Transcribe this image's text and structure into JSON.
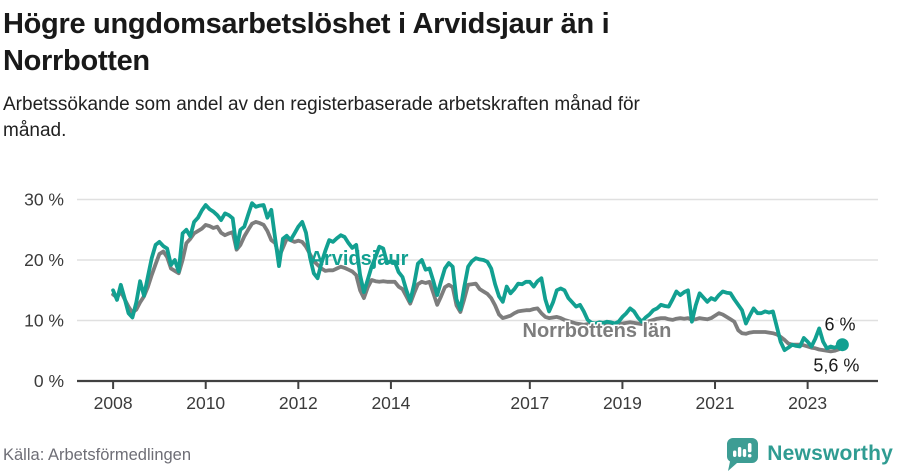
{
  "header": {
    "title_line1": "Högre ungdomsarbetslöshet i Arvidsjaur än i",
    "title_line2": "Norrbotten",
    "subtitle_line1": "Arbetssökande som andel av den registerbaserade arbetskraften månad för",
    "subtitle_line2": "månad."
  },
  "footer": {
    "source": "Källa: Arbetsförmedlingen",
    "brand_name": "Newsworthy",
    "brand_icon": "bar-chart-speech-bubble-icon",
    "brand_color": "#2f9c92",
    "brand_icon_color": "#3d9d94"
  },
  "chart_data": {
    "type": "line",
    "unit": "%",
    "grid": "horizontal-only",
    "x_start_year": 2008,
    "x_step_months": 1,
    "x_end": "2023-10",
    "xlim": [
      2007.22,
      2024.52
    ],
    "ylim": [
      0,
      32.45
    ],
    "x_ticks": [
      {
        "year": 2008,
        "label": "2008"
      },
      {
        "year": 2010,
        "label": "2010"
      },
      {
        "year": 2012,
        "label": "2012"
      },
      {
        "year": 2014,
        "label": "2014"
      },
      {
        "year": 2017,
        "label": "2017"
      },
      {
        "year": 2019,
        "label": "2019"
      },
      {
        "year": 2021,
        "label": "2021"
      },
      {
        "year": 2023,
        "label": "2023"
      }
    ],
    "y_ticks": [
      {
        "value": 0,
        "label": "0 %"
      },
      {
        "value": 10,
        "label": "10 %"
      },
      {
        "value": 20,
        "label": "20 %"
      },
      {
        "value": 30,
        "label": "30 %"
      }
    ],
    "colors": {
      "accent_teal": "#12a091",
      "gray": "#7d7d7d",
      "grid": "#e0e0e0",
      "axis": "#414141",
      "tick_text": "#3b3b3b"
    },
    "series": [
      {
        "name": "Arvidsjaur",
        "color": "#12a091",
        "end_value_label": "6 %",
        "values": [
          15.0,
          13.4,
          15.9,
          13.6,
          11.2,
          10.5,
          13.0,
          16.5,
          14.1,
          17.2,
          20.3,
          22.5,
          23.0,
          22.3,
          21.9,
          19.2,
          20.0,
          18.1,
          24.4,
          25.0,
          23.9,
          26.3,
          27.0,
          28.2,
          29.1,
          28.4,
          28.0,
          27.4,
          26.6,
          27.7,
          27.4,
          26.9,
          22.0,
          25.0,
          25.5,
          27.5,
          29.4,
          28.8,
          29.0,
          29.1,
          27.0,
          28.3,
          23.5,
          19.0,
          23.5,
          24.0,
          23.3,
          24.4,
          25.5,
          26.3,
          24.5,
          20.5,
          17.8,
          17.0,
          19.5,
          21.5,
          23.3,
          23.0,
          23.6,
          24.1,
          23.8,
          22.8,
          22.0,
          22.5,
          17.5,
          14.7,
          16.8,
          18.9,
          20.5,
          22.2,
          21.9,
          19.5,
          19.8,
          19.7,
          18.0,
          17.2,
          15.0,
          13.2,
          16.0,
          19.4,
          20.0,
          18.4,
          18.6,
          16.5,
          14.2,
          16.5,
          18.6,
          19.5,
          18.9,
          13.5,
          11.8,
          15.5,
          18.9,
          19.8,
          20.3,
          20.1,
          20.0,
          19.7,
          18.6,
          16.0,
          14.0,
          13.1,
          15.6,
          14.5,
          15.2,
          16.1,
          16.0,
          16.4,
          16.4,
          15.6,
          16.5,
          17.0,
          13.5,
          11.5,
          13.0,
          15.0,
          15.3,
          15.0,
          13.7,
          13.0,
          12.3,
          12.6,
          11.5,
          10.1,
          9.6,
          9.5,
          9.7,
          9.6,
          9.8,
          9.7,
          9.5,
          9.8,
          10.6,
          11.2,
          12.0,
          11.5,
          10.5,
          9.8,
          10.5,
          11.0,
          11.7,
          12.0,
          12.6,
          12.4,
          12.3,
          13.5,
          14.8,
          14.2,
          14.7,
          15.0,
          9.8,
          12.5,
          14.5,
          13.8,
          13.1,
          13.7,
          13.4,
          14.2,
          14.8,
          14.6,
          14.5,
          13.5,
          12.6,
          11.7,
          9.5,
          10.8,
          12.0,
          11.2,
          11.2,
          11.5,
          11.3,
          11.5,
          9.0,
          6.5,
          5.1,
          5.5,
          6.0,
          5.8,
          5.7,
          7.1,
          6.5,
          5.7,
          7.0,
          8.7,
          6.5,
          5.4,
          5.7,
          5.5,
          5.8,
          6.0
        ]
      },
      {
        "name": "Norrbottens län",
        "color": "#7d7d7d",
        "end_value_label": "5,6 %",
        "values": [
          14.3,
          13.8,
          14.8,
          13.5,
          12.3,
          11.3,
          11.8,
          13.0,
          14.0,
          15.5,
          17.5,
          19.3,
          21.0,
          21.4,
          20.5,
          18.6,
          18.2,
          17.8,
          20.0,
          22.8,
          23.5,
          24.4,
          24.8,
          25.2,
          25.8,
          25.6,
          25.3,
          25.5,
          24.5,
          24.1,
          24.4,
          24.6,
          21.7,
          22.5,
          23.9,
          25.0,
          26.0,
          26.3,
          26.1,
          25.8,
          24.8,
          23.3,
          22.8,
          20.5,
          22.0,
          23.5,
          23.3,
          23.0,
          23.2,
          23.0,
          22.2,
          21.0,
          19.8,
          19.2,
          18.6,
          18.2,
          18.3,
          18.3,
          18.6,
          18.9,
          18.7,
          18.4,
          18.1,
          17.5,
          15.0,
          13.7,
          15.5,
          16.7,
          16.5,
          16.4,
          16.5,
          16.4,
          16.4,
          16.4,
          15.6,
          15.2,
          14.0,
          12.8,
          14.5,
          16.0,
          16.4,
          16.2,
          16.4,
          14.5,
          12.6,
          14.0,
          15.5,
          15.9,
          15.5,
          12.5,
          11.4,
          13.5,
          15.9,
          16.0,
          16.1,
          15.2,
          14.8,
          14.4,
          13.7,
          12.5,
          11.0,
          10.4,
          10.6,
          10.8,
          11.2,
          11.5,
          11.6,
          11.7,
          11.7,
          11.9,
          12.0,
          11.2,
          10.6,
          10.4,
          10.5,
          10.6,
          10.4,
          10.1,
          9.9,
          9.7,
          9.5,
          9.4,
          9.3,
          9.4,
          9.5,
          9.4,
          9.3,
          9.4,
          9.5,
          9.6,
          9.5,
          9.5,
          9.5,
          9.6,
          9.7,
          9.6,
          9.5,
          9.4,
          9.7,
          9.9,
          10.1,
          10.3,
          10.4,
          10.4,
          10.2,
          10.1,
          10.3,
          10.4,
          10.3,
          10.4,
          10.1,
          10.2,
          10.4,
          10.3,
          10.2,
          10.4,
          10.8,
          11.2,
          11.0,
          10.6,
          10.2,
          9.8,
          8.4,
          7.9,
          7.8,
          8.0,
          8.1,
          8.1,
          8.1,
          8.1,
          8.0,
          7.9,
          7.7,
          7.3,
          6.8,
          6.2,
          6.0,
          6.0,
          6.0,
          5.9,
          5.7,
          5.5,
          5.4,
          5.2,
          5.1,
          5.0,
          4.9,
          5.0,
          5.2,
          5.6
        ]
      }
    ],
    "end_dot": {
      "series": "Arvidsjaur",
      "radius": 6.5
    },
    "annotations": [
      {
        "text": "Arvidsjaur",
        "year": 2013.31,
        "value": 20.3,
        "color": "#12a091",
        "size": 20,
        "weight": "bold",
        "halo": 0
      },
      {
        "text": "Norrbottens län",
        "year": 2018.45,
        "value": 8.4,
        "color": "#7d7d7d",
        "size": 20,
        "weight": "bold",
        "halo": 3
      },
      {
        "text": "6 %",
        "year": 2023.7,
        "value": 9.4,
        "color": "#1a1a1a",
        "size": 18,
        "weight": "normal",
        "halo": 3
      },
      {
        "text": "5,6 %",
        "year": 2023.62,
        "value": 2.6,
        "color": "#1a1a1a",
        "size": 18,
        "weight": "normal",
        "halo": 3
      }
    ]
  }
}
